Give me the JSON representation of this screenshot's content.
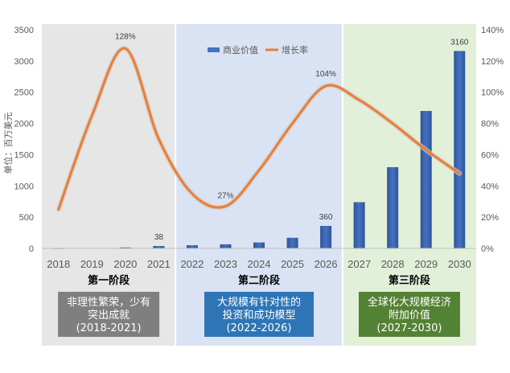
{
  "chart_data": {
    "type": "bar+line",
    "categories": [
      "2018",
      "2019",
      "2020",
      "2021",
      "2022",
      "2023",
      "2024",
      "2025",
      "2026",
      "2027",
      "2028",
      "2029",
      "2030"
    ],
    "series": [
      {
        "name": "商业价值",
        "type": "bar",
        "axis": "left",
        "values": [
          2,
          5,
          15,
          38,
          50,
          65,
          95,
          170,
          360,
          740,
          1300,
          2200,
          3160
        ]
      },
      {
        "name": "增长率",
        "type": "line",
        "axis": "right",
        "values": [
          25,
          85,
          128,
          70,
          35,
          27,
          50,
          80,
          104,
          95,
          80,
          63,
          48
        ]
      }
    ],
    "data_labels": [
      {
        "series": "增长率",
        "category": "2020",
        "text": "128%"
      },
      {
        "series": "商业价值",
        "category": "2021",
        "text": "38"
      },
      {
        "series": "增长率",
        "category": "2023",
        "text": "27%"
      },
      {
        "series": "增长率",
        "category": "2026",
        "text": "104%"
      },
      {
        "series": "商业价值",
        "category": "2026",
        "text": "360"
      },
      {
        "series": "商业价值",
        "category": "2030",
        "text": "3160"
      }
    ],
    "ylabel": "单位：百万美元",
    "ylim_left": [
      0,
      3500
    ],
    "yticks_left": [
      "0",
      "500",
      "1000",
      "1500",
      "2000",
      "2500",
      "3000",
      "3500"
    ],
    "ylim_right": [
      0,
      140
    ],
    "yticks_right": [
      "0%",
      "20%",
      "40%",
      "60%",
      "80%",
      "100%",
      "120%",
      "140%"
    ],
    "legend_position": "top-center",
    "grid": false,
    "colors": {
      "bar": "#4472c4",
      "line": "#ed7d31"
    }
  },
  "stages": [
    {
      "title": "第一阶段",
      "box": [
        "非理性繁荣，少有",
        "突出成就",
        "(2018-2021)"
      ],
      "bg": "#e6e6e6",
      "box_color": "#7f7f7f"
    },
    {
      "title": "第二阶段",
      "box": [
        "大规模有针对性的",
        "投资和成功模型",
        "(2022-2026)"
      ],
      "bg": "#dae3f3",
      "box_color": "#2e75b6"
    },
    {
      "title": "第三阶段",
      "box": [
        "全球化大规模经济",
        "附加价值",
        "(2027-2030)"
      ],
      "bg": "#e2f0d9",
      "box_color": "#548235"
    }
  ]
}
